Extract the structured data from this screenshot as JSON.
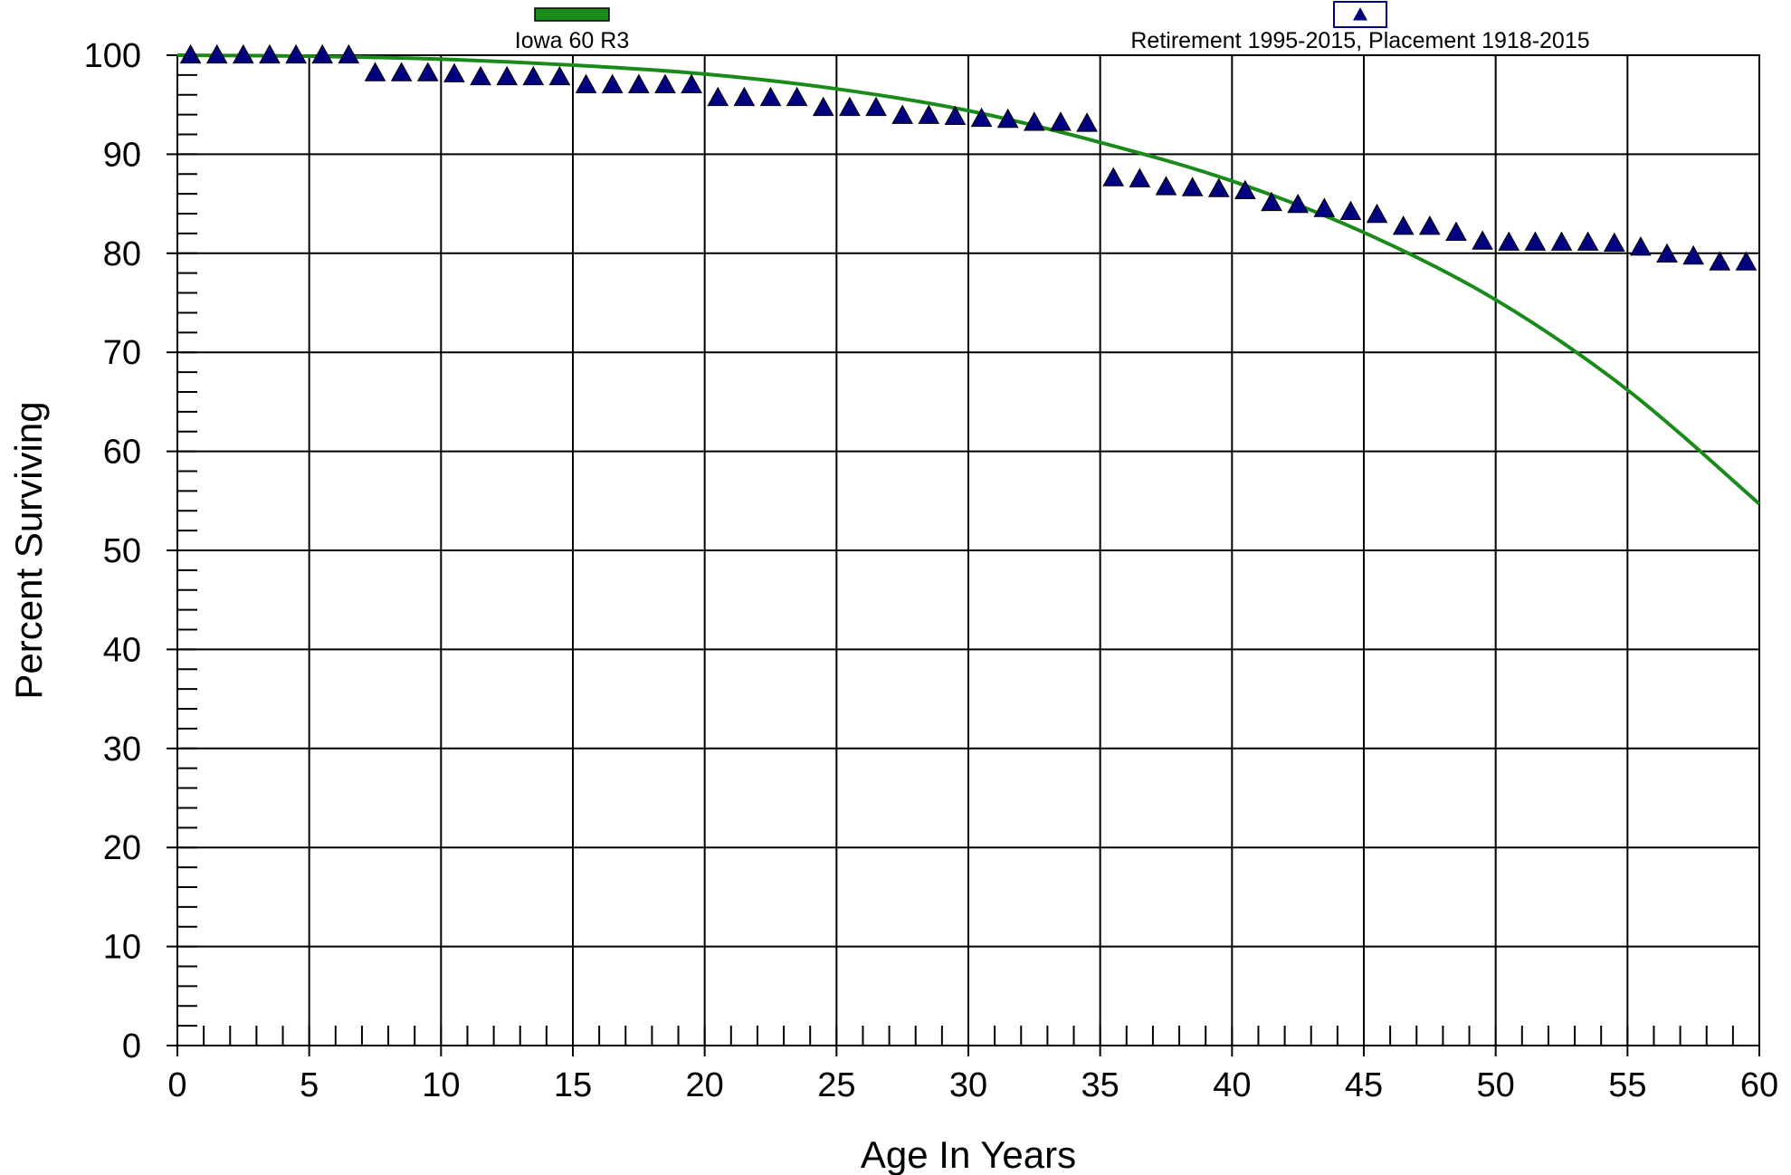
{
  "chart_data": {
    "type": "scatter",
    "xlabel": "Age In Years",
    "ylabel": "Percent Surviving",
    "xlim": [
      0,
      60
    ],
    "ylim": [
      0,
      100
    ],
    "x_ticks": [
      0,
      5,
      10,
      15,
      20,
      25,
      30,
      35,
      40,
      45,
      50,
      55,
      60
    ],
    "y_ticks": [
      0,
      10,
      20,
      30,
      40,
      50,
      60,
      70,
      80,
      90,
      100
    ],
    "x_minor_step": 1,
    "y_minor_step": 2,
    "grid": true,
    "legend_position": "top",
    "series": [
      {
        "name": "Iowa 60 R3",
        "kind": "line",
        "color": "#1a8a1a",
        "x": [
          0,
          5,
          10,
          15,
          20,
          25,
          30,
          35,
          40,
          45,
          50,
          55,
          60
        ],
        "y": [
          100,
          99.9,
          99.6,
          99.0,
          98.1,
          96.6,
          94.4,
          91.2,
          87.3,
          82.1,
          75.3,
          66.2,
          54.7
        ]
      },
      {
        "name": "Retirement 1995-2015, Placement 1918-2015",
        "kind": "scatter",
        "marker": "triangle",
        "color": "#000080",
        "x": [
          0.5,
          1.5,
          2.5,
          3.5,
          4.5,
          5.5,
          6.5,
          7.5,
          8.5,
          9.5,
          10.5,
          11.5,
          12.5,
          13.5,
          14.5,
          15.5,
          16.5,
          17.5,
          18.5,
          19.5,
          20.5,
          21.5,
          22.5,
          23.5,
          24.5,
          25.5,
          26.5,
          27.5,
          28.5,
          29.5,
          30.5,
          31.5,
          32.5,
          33.5,
          34.5,
          35.5,
          36.5,
          37.5,
          38.5,
          39.5,
          40.5,
          41.5,
          42.5,
          43.5,
          44.5,
          45.5,
          46.5,
          47.5,
          48.5,
          49.5,
          50.5,
          51.5,
          52.5,
          53.5,
          54.5,
          55.5,
          56.5,
          57.5,
          58.5,
          59.5
        ],
        "y": [
          99.9,
          99.9,
          99.9,
          99.9,
          99.9,
          99.9,
          99.9,
          98.1,
          98.1,
          98.1,
          98.0,
          97.7,
          97.7,
          97.7,
          97.7,
          96.9,
          96.9,
          96.9,
          96.9,
          96.9,
          95.6,
          95.6,
          95.6,
          95.6,
          94.6,
          94.6,
          94.6,
          93.8,
          93.8,
          93.7,
          93.5,
          93.4,
          93.1,
          93.1,
          93.0,
          87.5,
          87.4,
          86.6,
          86.5,
          86.4,
          86.2,
          85.0,
          84.8,
          84.4,
          84.1,
          83.8,
          82.6,
          82.6,
          82.0,
          81.1,
          81.0,
          81.0,
          81.0,
          81.0,
          80.9,
          80.5,
          79.8,
          79.6,
          79.0,
          79.0
        ]
      }
    ]
  }
}
